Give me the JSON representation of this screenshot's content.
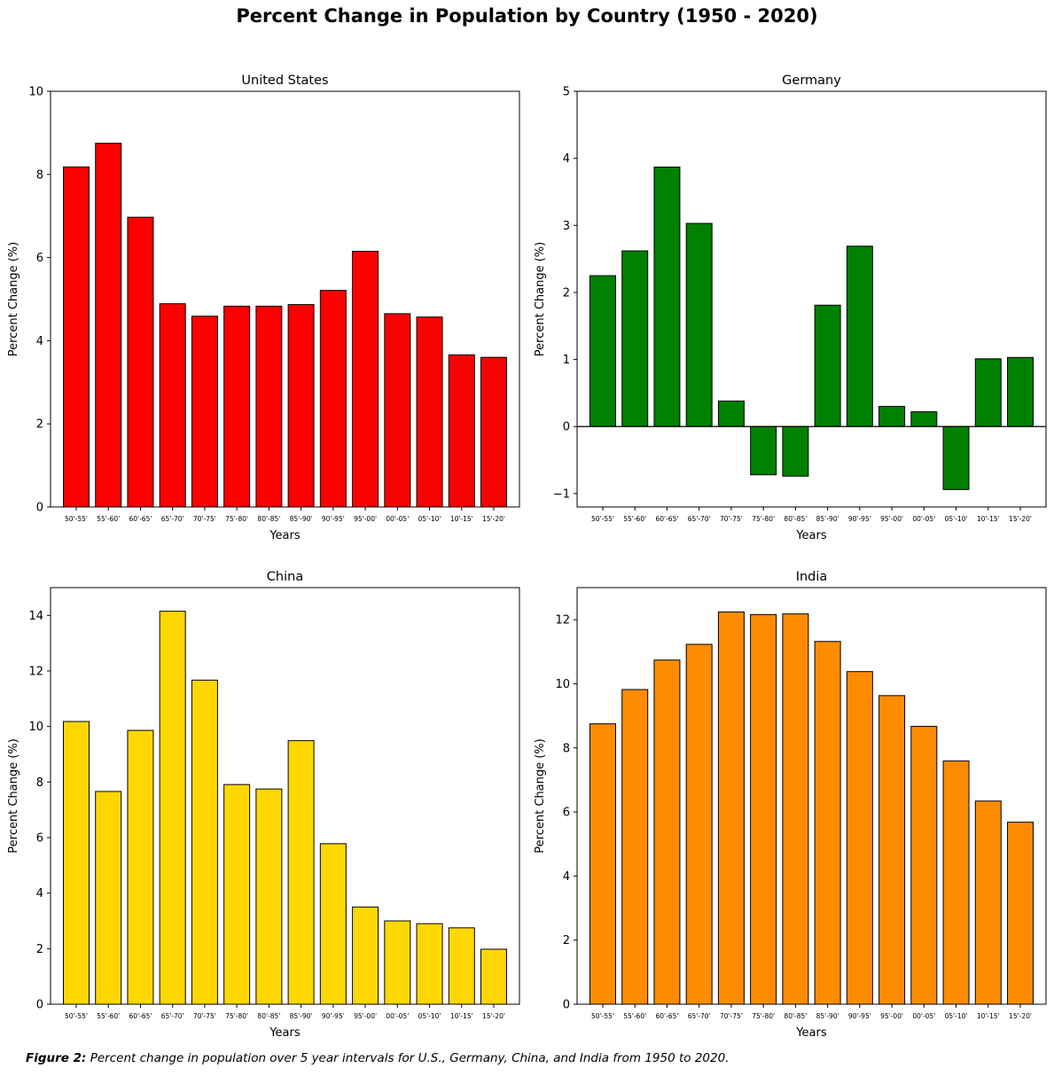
{
  "figure": {
    "title": "Percent Change in Population by Country (1950 - 2020)",
    "caption_lead": "Figure 2:",
    "caption_text": " Percent change in population over 5 year intervals for U.S., Germany, China, and India from 1950 to 2020."
  },
  "chart_data": [
    {
      "type": "bar",
      "title": "United States",
      "xlabel": "Years",
      "ylabel": "Percent Change (%)",
      "categories": [
        "50'-55'",
        "55'-60'",
        "60'-65'",
        "65'-70'",
        "70'-75'",
        "75'-80'",
        "80'-85'",
        "85'-90'",
        "90'-95'",
        "95'-00'",
        "00'-05'",
        "05'-10'",
        "10'-15'",
        "15'-20'"
      ],
      "values": [
        8.18,
        8.75,
        6.97,
        4.89,
        4.59,
        4.83,
        4.83,
        4.87,
        5.21,
        6.15,
        4.65,
        4.57,
        3.66,
        3.6
      ],
      "ylim": [
        0,
        10
      ],
      "yticks": [
        0,
        2,
        4,
        6,
        8,
        10
      ],
      "color": "#ff0000",
      "grid": false
    },
    {
      "type": "bar",
      "title": "Germany",
      "xlabel": "Years",
      "ylabel": "Percent Change (%)",
      "categories": [
        "50'-55'",
        "55'-60'",
        "60'-65'",
        "65'-70'",
        "70'-75'",
        "75'-80'",
        "80'-85'",
        "85'-90'",
        "90'-95'",
        "95'-00'",
        "00'-05'",
        "05'-10'",
        "10'-15'",
        "15'-20'"
      ],
      "values": [
        2.25,
        2.62,
        3.87,
        3.03,
        0.38,
        -0.72,
        -0.74,
        1.81,
        2.69,
        0.3,
        0.22,
        -0.94,
        1.01,
        1.03
      ],
      "ylim": [
        -1.2,
        5
      ],
      "yticks": [
        -1,
        0,
        1,
        2,
        3,
        4,
        5
      ],
      "zero_line": true,
      "color": "#008000",
      "grid": false
    },
    {
      "type": "bar",
      "title": "China",
      "xlabel": "Years",
      "ylabel": "Percent Change (%)",
      "categories": [
        "50'-55'",
        "55'-60'",
        "60'-65'",
        "65'-70'",
        "70'-75'",
        "75'-80'",
        "80'-85'",
        "85'-90'",
        "90'-95'",
        "95'-00'",
        "00'-05'",
        "05'-10'",
        "10'-15'",
        "15'-20'"
      ],
      "values": [
        10.18,
        7.66,
        9.86,
        14.15,
        11.67,
        7.91,
        7.75,
        9.49,
        5.78,
        3.5,
        3.0,
        2.9,
        2.75,
        1.98
      ],
      "ylim": [
        0,
        15
      ],
      "yticks": [
        0,
        2,
        4,
        6,
        8,
        10,
        12,
        14
      ],
      "color": "#ffd700",
      "grid": false
    },
    {
      "type": "bar",
      "title": "India",
      "xlabel": "Years",
      "ylabel": "Percent Change (%)",
      "categories": [
        "50'-55'",
        "55'-60'",
        "60'-65'",
        "65'-70'",
        "70'-75'",
        "75'-80'",
        "80'-85'",
        "85'-90'",
        "90'-95'",
        "95'-00'",
        "00'-05'",
        "05'-10'",
        "10'-15'",
        "15'-20'"
      ],
      "values": [
        8.75,
        9.82,
        10.74,
        11.23,
        12.24,
        12.16,
        12.18,
        11.32,
        10.38,
        9.63,
        8.67,
        7.59,
        6.34,
        5.68
      ],
      "ylim": [
        0,
        13
      ],
      "yticks": [
        0,
        2,
        4,
        6,
        8,
        10,
        12
      ],
      "color": "#ff8c00",
      "grid": false
    }
  ]
}
